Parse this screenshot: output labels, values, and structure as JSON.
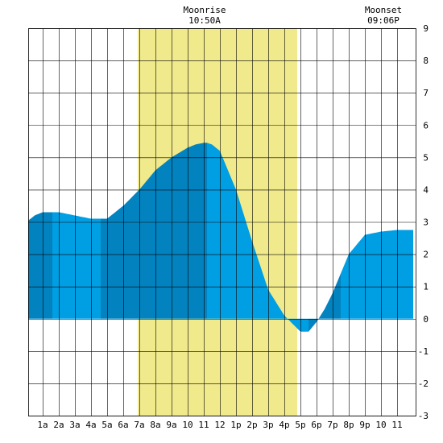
{
  "chart_data": {
    "type": "area",
    "title": "",
    "xlabel": "",
    "ylabel": "",
    "x_unit": "hour of day",
    "xlim": [
      0,
      24
    ],
    "ylim": [
      -3,
      9
    ],
    "grid": true,
    "x_ticks": [
      {
        "x": 1,
        "label": "1a"
      },
      {
        "x": 2,
        "label": "2a"
      },
      {
        "x": 3,
        "label": "3a"
      },
      {
        "x": 4,
        "label": "4a"
      },
      {
        "x": 5,
        "label": "5a"
      },
      {
        "x": 6,
        "label": "6a"
      },
      {
        "x": 7,
        "label": "7a"
      },
      {
        "x": 8,
        "label": "8a"
      },
      {
        "x": 9,
        "label": "9a"
      },
      {
        "x": 10,
        "label": "10"
      },
      {
        "x": 11,
        "label": "11"
      },
      {
        "x": 12,
        "label": "12"
      },
      {
        "x": 13,
        "label": "1p"
      },
      {
        "x": 14,
        "label": "2p"
      },
      {
        "x": 15,
        "label": "3p"
      },
      {
        "x": 16,
        "label": "4p"
      },
      {
        "x": 17,
        "label": "5p"
      },
      {
        "x": 18,
        "label": "6p"
      },
      {
        "x": 19,
        "label": "7p"
      },
      {
        "x": 20,
        "label": "8p"
      },
      {
        "x": 21,
        "label": "9p"
      },
      {
        "x": 22,
        "label": "10"
      },
      {
        "x": 23,
        "label": "11"
      }
    ],
    "y_ticks": [
      -3,
      -2,
      -1,
      0,
      1,
      2,
      3,
      4,
      5,
      6,
      7,
      8,
      9
    ],
    "series": [
      {
        "x": [
          0,
          0.5,
          1,
          1.6,
          2,
          3,
          4,
          4.6,
          5,
          6,
          7,
          8,
          9,
          10,
          10.5,
          11,
          11.2,
          11.5,
          12,
          13,
          14,
          15,
          16,
          17,
          17.5,
          18,
          18.5,
          19,
          19.5,
          20,
          21,
          22,
          23,
          24
        ],
        "y": [
          3.0,
          3.2,
          3.3,
          3.3,
          3.3,
          3.2,
          3.1,
          3.1,
          3.1,
          3.5,
          4.0,
          4.6,
          5.0,
          5.3,
          5.4,
          5.45,
          5.45,
          5.4,
          5.2,
          4.0,
          2.4,
          0.9,
          0.1,
          -0.4,
          -0.4,
          -0.1,
          0.3,
          0.8,
          1.4,
          2.0,
          2.6,
          2.7,
          2.75,
          2.75
        ]
      }
    ],
    "day_shading": {
      "start": 6.9,
      "end": 16.8,
      "color": "#f0ea8c"
    },
    "band_boundaries": [
      1.6,
      4.6,
      11.2,
      17.5,
      19.5
    ],
    "annotations": [
      {
        "x": 11.0,
        "label": "Moonrise",
        "time": "10:50A"
      },
      {
        "x": 22.1,
        "label": "Moonset",
        "time": "09:06P"
      }
    ],
    "colors": {
      "band_dark": "#0283c0",
      "band_light": "#009ee2",
      "grid": "#000000",
      "background": "#ffffff"
    }
  }
}
